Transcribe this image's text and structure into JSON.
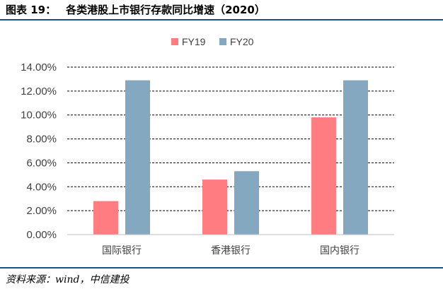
{
  "figure": {
    "label": "图表 19：",
    "title": "各类港股上市银行存款同比增速（2020）"
  },
  "source": "资料来源：wind，中信建投",
  "chart_data": {
    "type": "bar",
    "categories": [
      "国际银行",
      "香港银行",
      "国内银行"
    ],
    "series": [
      {
        "name": "FY19",
        "values": [
          0.028,
          0.046,
          0.098
        ],
        "color": "#ff7c80"
      },
      {
        "name": "FY20",
        "values": [
          0.129,
          0.053,
          0.129
        ],
        "color": "#84a8c0"
      }
    ],
    "ylim": [
      0,
      0.14
    ],
    "yticks": [
      "0.00%",
      "2.00%",
      "4.00%",
      "6.00%",
      "8.00%",
      "10.00%",
      "12.00%",
      "14.00%"
    ],
    "grid": true,
    "legend": "top-center"
  }
}
